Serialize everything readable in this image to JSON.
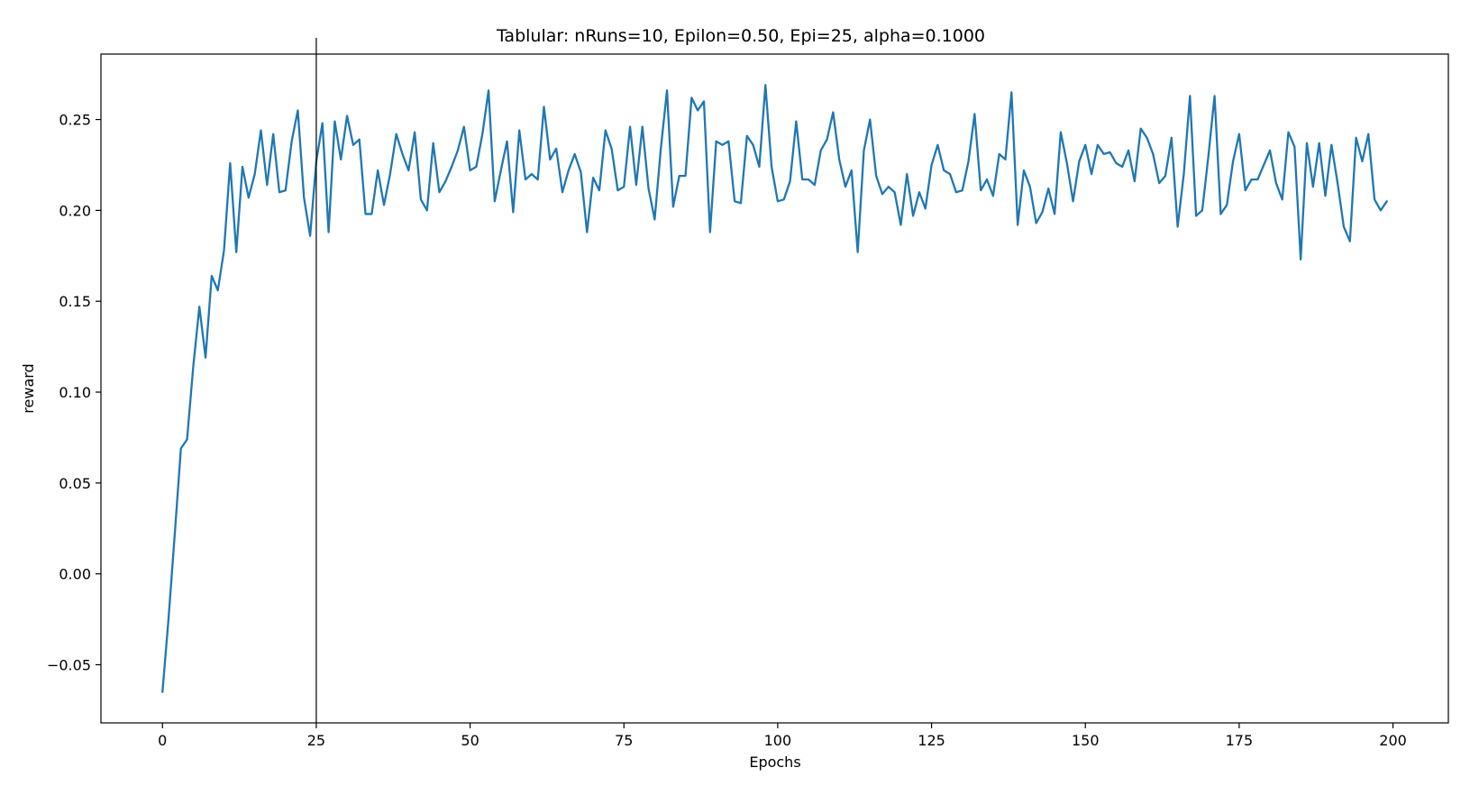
{
  "chart_data": {
    "type": "line",
    "title": "Tablular: nRuns=10, Epilon=0.50, Epi=25, alpha=0.1000",
    "xlabel": "Epochs",
    "ylabel": "reward",
    "xlim": [
      -10,
      209
    ],
    "ylim": [
      -0.082,
      0.286
    ],
    "xticks": [
      0,
      25,
      50,
      75,
      100,
      125,
      150,
      175,
      200
    ],
    "xtick_labels": [
      "0",
      "25",
      "50",
      "75",
      "100",
      "125",
      "150",
      "175",
      "200"
    ],
    "yticks": [
      -0.05,
      0.0,
      0.05,
      0.1,
      0.15,
      0.2,
      0.25
    ],
    "ytick_labels": [
      "−0.05",
      "0.00",
      "0.05",
      "0.10",
      "0.15",
      "0.20",
      "0.25"
    ],
    "grid": false,
    "vline_x": 25,
    "series": [
      {
        "color": "#1f77b4",
        "x_start": 0,
        "x_step": 1,
        "values": [
          -0.065,
          -0.024,
          0.022,
          0.069,
          0.074,
          0.114,
          0.147,
          0.119,
          0.164,
          0.156,
          0.178,
          0.226,
          0.177,
          0.224,
          0.207,
          0.22,
          0.244,
          0.214,
          0.242,
          0.21,
          0.211,
          0.238,
          0.255,
          0.207,
          0.186,
          0.227,
          0.248,
          0.188,
          0.249,
          0.228,
          0.252,
          0.236,
          0.239,
          0.198,
          0.198,
          0.222,
          0.203,
          0.22,
          0.242,
          0.231,
          0.222,
          0.243,
          0.206,
          0.2,
          0.237,
          0.21,
          0.216,
          0.224,
          0.233,
          0.246,
          0.222,
          0.224,
          0.242,
          0.266,
          0.205,
          0.222,
          0.238,
          0.199,
          0.244,
          0.217,
          0.22,
          0.217,
          0.257,
          0.228,
          0.234,
          0.21,
          0.222,
          0.231,
          0.221,
          0.188,
          0.218,
          0.211,
          0.244,
          0.234,
          0.211,
          0.213,
          0.246,
          0.214,
          0.246,
          0.212,
          0.195,
          0.234,
          0.266,
          0.202,
          0.219,
          0.219,
          0.262,
          0.255,
          0.26,
          0.188,
          0.238,
          0.236,
          0.238,
          0.205,
          0.204,
          0.241,
          0.236,
          0.224,
          0.269,
          0.224,
          0.205,
          0.206,
          0.216,
          0.249,
          0.217,
          0.217,
          0.214,
          0.233,
          0.239,
          0.254,
          0.228,
          0.213,
          0.222,
          0.177,
          0.233,
          0.25,
          0.219,
          0.209,
          0.213,
          0.21,
          0.192,
          0.22,
          0.197,
          0.21,
          0.201,
          0.225,
          0.236,
          0.222,
          0.22,
          0.21,
          0.211,
          0.227,
          0.253,
          0.211,
          0.217,
          0.208,
          0.231,
          0.228,
          0.265,
          0.192,
          0.222,
          0.213,
          0.193,
          0.199,
          0.212,
          0.198,
          0.243,
          0.226,
          0.205,
          0.227,
          0.236,
          0.22,
          0.236,
          0.231,
          0.232,
          0.226,
          0.224,
          0.233,
          0.216,
          0.245,
          0.24,
          0.231,
          0.215,
          0.219,
          0.24,
          0.191,
          0.22,
          0.263,
          0.197,
          0.2,
          0.23,
          0.263,
          0.198,
          0.203,
          0.227,
          0.242,
          0.211,
          0.217,
          0.217,
          0.225,
          0.233,
          0.215,
          0.206,
          0.243,
          0.235,
          0.173,
          0.237,
          0.213,
          0.237,
          0.208,
          0.236,
          0.215,
          0.191,
          0.183,
          0.24,
          0.227,
          0.242,
          0.206,
          0.2,
          0.205
        ]
      }
    ]
  }
}
